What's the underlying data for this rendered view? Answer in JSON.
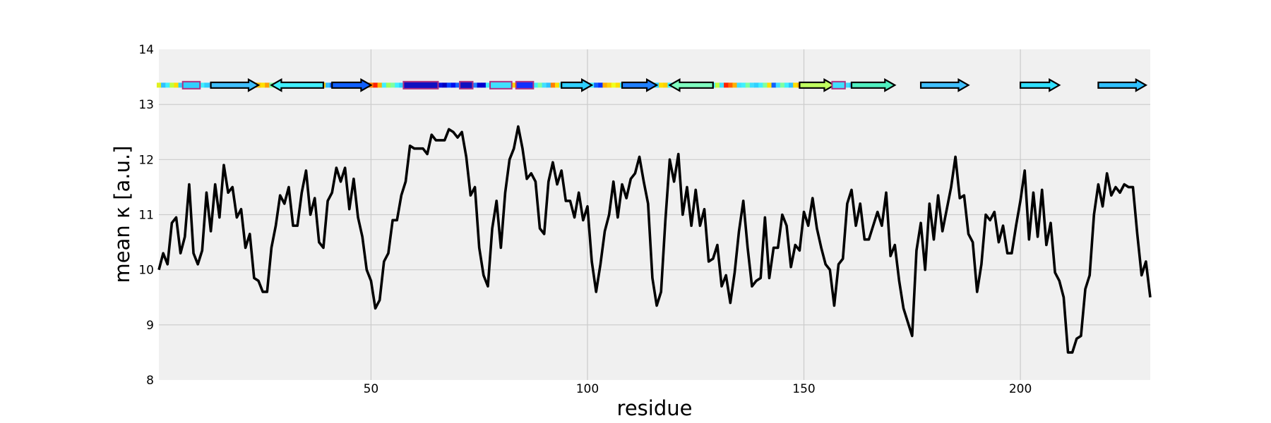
{
  "chart_data": {
    "type": "line",
    "xlabel": "residue",
    "ylabel": "mean κ [a.u.]",
    "xlim": [
      1,
      230
    ],
    "ylim": [
      8,
      14
    ],
    "xticks": [
      50,
      100,
      150,
      200
    ],
    "yticks": [
      8,
      9,
      10,
      11,
      12,
      13,
      14
    ],
    "grid": true,
    "colors": {
      "background": "#f0f0f0",
      "grid": "#cbcbcb",
      "line": "#000000",
      "arrow_border": "#000000",
      "helix_border": "#b03080"
    },
    "series": [
      {
        "x": [
          1,
          2,
          3,
          4,
          5,
          6,
          7,
          8,
          9,
          10,
          11,
          12,
          13,
          14,
          15,
          16,
          17,
          18,
          19,
          20,
          21,
          22,
          23,
          24,
          25,
          26,
          27,
          28,
          29,
          30,
          31,
          32,
          33,
          34,
          35,
          36,
          37,
          38,
          39,
          40,
          41,
          42,
          43,
          44,
          45,
          46,
          47,
          48,
          49,
          50,
          51,
          52,
          53,
          54,
          55,
          56,
          57,
          58,
          59,
          60,
          61,
          62,
          63,
          64,
          65,
          66,
          67,
          68,
          69,
          70,
          71,
          72,
          73,
          74,
          75,
          76,
          77,
          78,
          79,
          80,
          81,
          82,
          83,
          84,
          85,
          86,
          87,
          88,
          89,
          90,
          91,
          92,
          93,
          94,
          95,
          96,
          97,
          98,
          99,
          100,
          101,
          102,
          103,
          104,
          105,
          106,
          107,
          108,
          109,
          110,
          111,
          112,
          113,
          114,
          115,
          116,
          117,
          118,
          119,
          120,
          121,
          122,
          123,
          124,
          125,
          126,
          127,
          128,
          129,
          130,
          131,
          132,
          133,
          134,
          135,
          136,
          137,
          138,
          139,
          140,
          141,
          142,
          143,
          144,
          145,
          146,
          147,
          148,
          149,
          150,
          151,
          152,
          153,
          154,
          155,
          156,
          157,
          158,
          159,
          160,
          161,
          162,
          163,
          164,
          165,
          166,
          167,
          168,
          169,
          170,
          171,
          172,
          173,
          174,
          175,
          176,
          177,
          178,
          179,
          180,
          181,
          182,
          183,
          184,
          185,
          186,
          187,
          188,
          189,
          190,
          191,
          192,
          193,
          194,
          195,
          196,
          197,
          198,
          199,
          200,
          201,
          202,
          203,
          204,
          205,
          206,
          207,
          208,
          209,
          210,
          211,
          212,
          213,
          214,
          215,
          216,
          217,
          218,
          219,
          220,
          221,
          222,
          223,
          224,
          225,
          226,
          227,
          228,
          229,
          230
        ],
        "y": [
          10.0,
          10.3,
          10.1,
          10.85,
          10.95,
          10.3,
          10.6,
          11.55,
          10.3,
          10.1,
          10.35,
          11.4,
          10.7,
          11.55,
          10.95,
          11.9,
          11.4,
          11.5,
          10.95,
          11.1,
          10.4,
          10.65,
          9.85,
          9.8,
          9.6,
          9.6,
          10.4,
          10.8,
          11.35,
          11.2,
          11.5,
          10.8,
          10.8,
          11.4,
          11.8,
          11.0,
          11.3,
          10.5,
          10.4,
          11.25,
          11.4,
          11.85,
          11.6,
          11.85,
          11.1,
          11.65,
          10.95,
          10.6,
          10.0,
          9.8,
          9.3,
          9.45,
          10.15,
          10.3,
          10.9,
          10.9,
          11.35,
          11.6,
          12.25,
          12.2,
          12.2,
          12.2,
          12.1,
          12.45,
          12.35,
          12.35,
          12.35,
          12.55,
          12.5,
          12.4,
          12.5,
          12.05,
          11.35,
          11.5,
          10.4,
          9.9,
          9.7,
          10.75,
          11.25,
          10.4,
          11.4,
          12.0,
          12.2,
          12.6,
          12.2,
          11.65,
          11.75,
          11.6,
          10.75,
          10.65,
          11.6,
          11.95,
          11.55,
          11.8,
          11.25,
          11.25,
          10.95,
          11.4,
          10.9,
          11.15,
          10.15,
          9.6,
          10.1,
          10.7,
          11.0,
          11.6,
          10.95,
          11.55,
          11.3,
          11.65,
          11.75,
          12.05,
          11.6,
          11.2,
          9.85,
          9.35,
          9.6,
          10.9,
          12.0,
          11.6,
          12.1,
          11.0,
          11.5,
          10.8,
          11.45,
          10.8,
          11.1,
          10.15,
          10.2,
          10.45,
          9.7,
          9.9,
          9.4,
          9.95,
          10.7,
          11.25,
          10.4,
          9.7,
          9.8,
          9.85,
          10.95,
          9.85,
          10.4,
          10.4,
          11.0,
          10.8,
          10.05,
          10.45,
          10.35,
          11.05,
          10.8,
          11.3,
          10.75,
          10.4,
          10.1,
          10.0,
          9.35,
          10.1,
          10.2,
          11.2,
          11.45,
          10.8,
          11.2,
          10.55,
          10.55,
          10.8,
          11.05,
          10.8,
          11.4,
          10.25,
          10.45,
          9.8,
          9.3,
          9.05,
          8.8,
          10.35,
          10.85,
          10.0,
          11.2,
          10.55,
          11.35,
          10.7,
          11.1,
          11.5,
          12.05,
          11.3,
          11.35,
          10.65,
          10.5,
          9.6,
          10.1,
          11.0,
          10.9,
          11.05,
          10.5,
          10.8,
          10.3,
          10.3,
          10.8,
          11.25,
          11.8,
          10.55,
          11.4,
          10.6,
          11.45,
          10.45,
          10.85,
          9.95,
          9.8,
          9.5,
          8.5,
          8.5,
          8.75,
          8.8,
          9.65,
          9.9,
          11.0,
          11.55,
          11.15,
          11.75,
          11.35,
          11.5,
          11.4,
          11.55,
          11.5,
          11.5,
          10.65,
          9.9,
          10.15,
          9.5
        ]
      }
    ],
    "secondary_structure": {
      "y_level": 13.35,
      "strands": [
        {
          "start": 13,
          "end": 24,
          "direction": "right",
          "color": "#40c0ff"
        },
        {
          "start": 27,
          "end": 39,
          "direction": "left",
          "color": "#40f0ff"
        },
        {
          "start": 41,
          "end": 50,
          "direction": "right",
          "color": "#1060ff"
        },
        {
          "start": 94,
          "end": 101,
          "direction": "right",
          "color": "#30d0ff"
        },
        {
          "start": 108,
          "end": 116,
          "direction": "right",
          "color": "#2080ff"
        },
        {
          "start": 119,
          "end": 129,
          "direction": "left",
          "color": "#80ffc0"
        },
        {
          "start": 149,
          "end": 157,
          "direction": "right",
          "color": "#c0ff60"
        },
        {
          "start": 161,
          "end": 171,
          "direction": "right",
          "color": "#50f0c0"
        },
        {
          "start": 177,
          "end": 188,
          "direction": "right",
          "color": "#40c0ff"
        },
        {
          "start": 200,
          "end": 209,
          "direction": "right",
          "color": "#30e0ff"
        },
        {
          "start": 218,
          "end": 229,
          "direction": "right",
          "color": "#30c0ff"
        }
      ],
      "helices": [
        {
          "start": 7,
          "end": 10,
          "color": "#30d0ff"
        },
        {
          "start": 58,
          "end": 65,
          "color": "#1010c0"
        },
        {
          "start": 71,
          "end": 73,
          "color": "#1010c0"
        },
        {
          "start": 78,
          "end": 82,
          "color": "#40e0ff"
        },
        {
          "start": 84,
          "end": 87,
          "color": "#1030ff"
        },
        {
          "start": 157,
          "end": 159,
          "color": "#40e0ff"
        }
      ],
      "band_colors": [
        "#e0f020",
        "#30c0ff",
        "#40f0ff",
        "#c0ff40",
        "#ffe000",
        "#30d0ff",
        "#40e0ff",
        "#80ff80",
        "#ffd000",
        "#ffe000",
        "#40f0ff",
        "#30d0ff",
        "#40c0ff",
        "#ffa000",
        "#40f0ff",
        "#80ffa0",
        "#ffd000",
        "#40f0ff",
        "#c0ff40",
        "#ffe000",
        "#30d0ff",
        "#a0ff60",
        "#ff8000",
        "#ffc000",
        "#ffe000",
        "#ffa000",
        "#80ffa0",
        "#30d0ff",
        "#40f0ff",
        "#ffe000",
        "#f0ff20",
        "#c0ff40",
        "#80ffa0",
        "#40f0ff",
        "#ff6000",
        "#ff9000",
        "#80ffa0",
        "#40e0ff",
        "#ffd000",
        "#30c0ff",
        "#1060ff",
        "#40e0ff",
        "#30d0ff",
        "#80ffa0",
        "#ffd000",
        "#ffe000",
        "#40f0ff",
        "#30d0ff",
        "#1060ff",
        "#ff8000",
        "#ff2000",
        "#ffb000",
        "#40f0ff",
        "#a0ff60",
        "#80ffa0",
        "#40f0ff",
        "#30d0ff",
        "#0000c0",
        "#0000b0",
        "#0000c0",
        "#0000d0",
        "#0000c0",
        "#0020ff",
        "#0000c0",
        "#0000b0",
        "#0010e0",
        "#0000c0",
        "#0040ff",
        "#0010f0",
        "#1060ff",
        "#0000a0",
        "#40e0ff",
        "#80ffa0",
        "#2080ff",
        "#0000d0",
        "#0000d0",
        "#40f0ff",
        "#ffe000",
        "#40e0ff",
        "#1030ff",
        "#0000c0",
        "#40e0ff",
        "#ffd000",
        "#30c0ff",
        "#0010e0",
        "#0000c0",
        "#30c0ff",
        "#40f0ff",
        "#80ffa0",
        "#40e0ff",
        "#30c0ff",
        "#ff8000",
        "#ffe000",
        "#40f0ff",
        "#c0ff40",
        "#30d0ff",
        "#40f0ff",
        "#ffe000",
        "#ff9000",
        "#30d0ff",
        "#40f0ff",
        "#1060ff",
        "#0030ff",
        "#ffb000",
        "#ffd000",
        "#f0ff20",
        "#ffe000",
        "#40f0ff",
        "#ffd000",
        "#a0ff60",
        "#ffa000",
        "#40f0ff",
        "#ffe000",
        "#80ffa0",
        "#c0ff40",
        "#30d0ff",
        "#ffe000",
        "#ffd000",
        "#40f0ff",
        "#c0ff40",
        "#80ffa0",
        "#ff8000",
        "#ffd000",
        "#ffe000",
        "#40f0ff",
        "#30d0ff",
        "#ffe000",
        "#80ffa0",
        "#40f0ff",
        "#c0ff40",
        "#40e0ff",
        "#ff2000",
        "#ff6000",
        "#ffb000",
        "#40e0ff",
        "#40f0ff",
        "#80ffa0",
        "#40e0ff",
        "#30d0ff",
        "#40f0ff",
        "#80ffa0",
        "#ffe000",
        "#1060ff",
        "#40e0ff",
        "#80ffa0",
        "#40f0ff",
        "#30c0ff",
        "#ffe000",
        "#ffb000",
        "#ff2000",
        "#a00000",
        "#800000",
        "#a00000",
        "#ff2000",
        "#40f0ff",
        "#30d0ff",
        "#1060ff",
        "#80ffa0",
        "#40f0ff",
        "#40e0ff",
        "#30c0ff",
        "#ffe000",
        "#40f0ff",
        "#ff9000"
      ]
    }
  }
}
